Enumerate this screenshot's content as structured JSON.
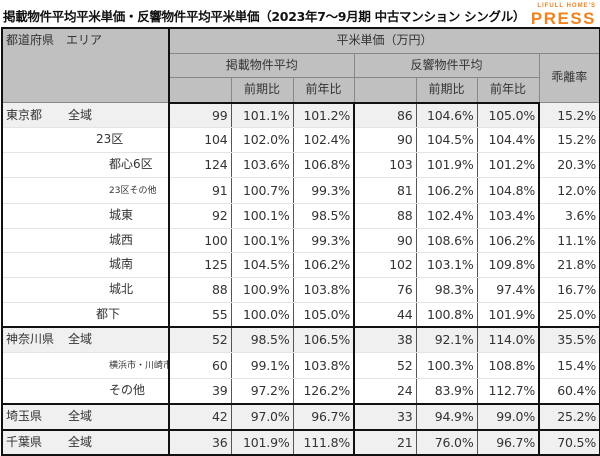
{
  "header": {
    "title": "掲載物件平均平米単価・反響物件平均平米単価（2023年7～9月期 中古マンション シングル）",
    "logo_top": "LIFULL HOME'S",
    "logo_main": "PRESS"
  },
  "table": {
    "col_pref_area": "都道府県　エリア",
    "col_group": "平米単価（万円）",
    "col_listed": "掲載物件平均",
    "col_response": "反響物件平均",
    "col_divergence": "乖離率",
    "col_qoq": "前期比",
    "col_yoy": "前年比",
    "rows": [
      {
        "pref": "東京都",
        "area": "全域",
        "listed": "99",
        "listed_qoq": "101.1%",
        "listed_yoy": "101.2%",
        "resp": "86",
        "resp_qoq": "104.6%",
        "resp_yoy": "105.0%",
        "div": "15.2%"
      },
      {
        "pref": "",
        "area": "23区",
        "listed": "104",
        "listed_qoq": "102.0%",
        "listed_yoy": "102.4%",
        "resp": "90",
        "resp_qoq": "104.5%",
        "resp_yoy": "104.4%",
        "div": "15.2%"
      },
      {
        "pref": "",
        "area": "都心6区",
        "listed": "124",
        "listed_qoq": "103.6%",
        "listed_yoy": "106.8%",
        "resp": "103",
        "resp_qoq": "101.9%",
        "resp_yoy": "101.2%",
        "div": "20.3%"
      },
      {
        "pref": "",
        "area": "23区その他",
        "listed": "91",
        "listed_qoq": "100.7%",
        "listed_yoy": "99.3%",
        "resp": "81",
        "resp_qoq": "106.2%",
        "resp_yoy": "104.8%",
        "div": "12.0%"
      },
      {
        "pref": "",
        "area": "城東",
        "listed": "92",
        "listed_qoq": "100.1%",
        "listed_yoy": "98.5%",
        "resp": "88",
        "resp_qoq": "102.4%",
        "resp_yoy": "103.4%",
        "div": "3.6%"
      },
      {
        "pref": "",
        "area": "城西",
        "listed": "100",
        "listed_qoq": "100.1%",
        "listed_yoy": "99.3%",
        "resp": "90",
        "resp_qoq": "108.6%",
        "resp_yoy": "106.2%",
        "div": "11.1%"
      },
      {
        "pref": "",
        "area": "城南",
        "listed": "125",
        "listed_qoq": "104.5%",
        "listed_yoy": "106.2%",
        "resp": "102",
        "resp_qoq": "103.1%",
        "resp_yoy": "109.8%",
        "div": "21.8%"
      },
      {
        "pref": "",
        "area": "城北",
        "listed": "88",
        "listed_qoq": "100.9%",
        "listed_yoy": "103.8%",
        "resp": "76",
        "resp_qoq": "98.3%",
        "resp_yoy": "97.4%",
        "div": "16.7%"
      },
      {
        "pref": "",
        "area": "都下",
        "listed": "55",
        "listed_qoq": "100.0%",
        "listed_yoy": "105.0%",
        "resp": "44",
        "resp_qoq": "100.8%",
        "resp_yoy": "101.9%",
        "div": "25.0%"
      },
      {
        "pref": "神奈川県",
        "area": "全域",
        "listed": "52",
        "listed_qoq": "98.5%",
        "listed_yoy": "106.5%",
        "resp": "38",
        "resp_qoq": "92.1%",
        "resp_yoy": "114.0%",
        "div": "35.5%"
      },
      {
        "pref": "",
        "area": "横浜市・川崎市",
        "listed": "60",
        "listed_qoq": "99.1%",
        "listed_yoy": "103.8%",
        "resp": "52",
        "resp_qoq": "100.3%",
        "resp_yoy": "108.8%",
        "div": "15.4%"
      },
      {
        "pref": "",
        "area": "その他",
        "listed": "39",
        "listed_qoq": "97.2%",
        "listed_yoy": "126.2%",
        "resp": "24",
        "resp_qoq": "83.9%",
        "resp_yoy": "112.7%",
        "div": "60.4%"
      },
      {
        "pref": "埼玉県",
        "area": "全域",
        "listed": "42",
        "listed_qoq": "97.0%",
        "listed_yoy": "96.7%",
        "resp": "33",
        "resp_qoq": "94.9%",
        "resp_yoy": "99.0%",
        "div": "25.2%"
      },
      {
        "pref": "千葉県",
        "area": "全域",
        "listed": "36",
        "listed_qoq": "101.9%",
        "listed_yoy": "111.8%",
        "resp": "21",
        "resp_qoq": "76.0%",
        "resp_yoy": "96.7%",
        "div": "70.5%"
      }
    ]
  },
  "colors": {
    "header_bg": "#c0c0c0",
    "group_row_bg": "#f0f0f0",
    "logo": "#f0831e"
  }
}
